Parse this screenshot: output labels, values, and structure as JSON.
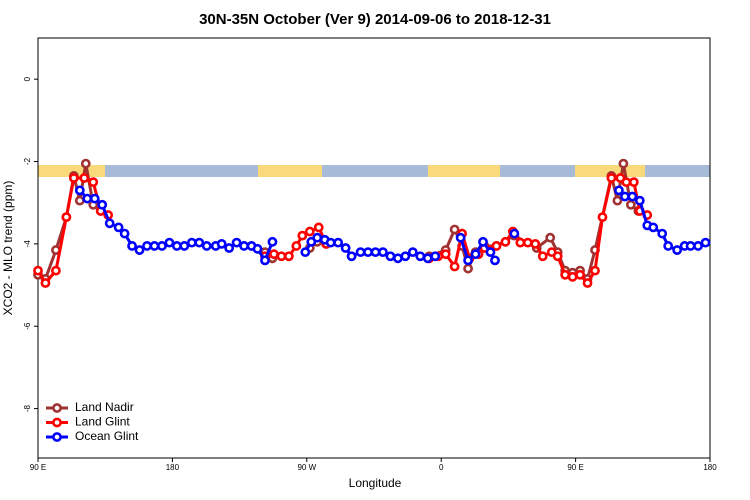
{
  "chart_data": {
    "type": "line",
    "title": "30N-35N October (Ver 9)   2014-09-06 to 2018-12-31",
    "x_label": "Longitude",
    "y_label": "XCO2 - MLO trend (ppm)",
    "xlim": [
      90,
      540
    ],
    "xticks": [
      {
        "value": 90,
        "label": "90 E"
      },
      180,
      {
        "value": 270,
        "label": "90 W"
      },
      {
        "value": 360,
        "label": "0"
      },
      {
        "value": 450,
        "label": "90 E"
      },
      {
        "value": 540,
        "label": "180"
      }
    ],
    "ylim": [
      -9.2,
      1
    ],
    "yticks": [
      0,
      -2,
      -4,
      -6,
      -8
    ],
    "legend": "bottom-left",
    "series": [
      {
        "name": "Land Nadir",
        "color": "#a03232",
        "x": [
          90,
          95,
          102,
          109,
          114,
          118,
          122,
          127,
          132,
          null,
          242,
          247,
          null,
          272,
          277,
          283,
          null,
          352,
          363,
          369,
          374,
          378,
          383,
          389,
          397,
          409,
          424,
          433,
          438,
          443,
          448,
          453,
          458,
          463,
          474,
          478,
          482,
          487,
          492
        ],
        "values": [
          -4.75,
          -4.85,
          -4.15,
          -3.35,
          -2.35,
          -2.95,
          -2.05,
          -3.05,
          -3.2,
          null,
          -4.2,
          -4.35,
          null,
          -4.1,
          -3.95,
          -4.0,
          null,
          -4.3,
          -4.15,
          -3.65,
          -4.05,
          -4.6,
          -4.2,
          -4.05,
          -4.05,
          -3.8,
          -4.1,
          -3.85,
          -4.2,
          -4.65,
          -4.7,
          -4.65,
          -4.85,
          -4.15,
          -2.35,
          -2.95,
          -2.05,
          -3.05,
          -3.2
        ]
      },
      {
        "name": "Land Glint",
        "color": "#ff0000",
        "x": [
          90,
          95,
          102,
          109,
          114,
          121,
          127,
          132,
          137,
          null,
          242,
          248,
          253,
          258,
          263,
          267,
          272,
          278,
          283,
          null,
          352,
          358,
          363,
          369,
          374,
          379,
          385,
          389,
          397,
          403,
          408,
          413,
          418,
          423,
          428,
          434,
          438,
          443,
          448,
          453,
          458,
          463,
          468,
          474,
          480,
          484,
          489,
          493,
          498
        ],
        "values": [
          -4.65,
          -4.95,
          -4.65,
          -3.35,
          -2.4,
          -2.4,
          -2.5,
          -3.2,
          -3.3,
          null,
          -4.3,
          -4.25,
          -4.3,
          -4.3,
          -4.05,
          -3.8,
          -3.7,
          -3.6,
          -4.0,
          null,
          -4.35,
          -4.3,
          -4.25,
          -4.55,
          -3.75,
          -4.35,
          -4.25,
          -4.1,
          -4.05,
          -3.95,
          -3.7,
          -3.97,
          -3.97,
          -4.0,
          -4.3,
          -4.2,
          -4.3,
          -4.75,
          -4.8,
          -4.75,
          -4.95,
          -4.65,
          -3.35,
          -2.4,
          -2.4,
          -2.5,
          -2.5,
          -3.2,
          -3.3
        ]
      },
      {
        "name": "Ocean Glint",
        "color": "#0000ff",
        "x": [
          118,
          123,
          128,
          133,
          138,
          144,
          148,
          153,
          158,
          163,
          168,
          173,
          178,
          183,
          188,
          193,
          198,
          203,
          209,
          213,
          218,
          223,
          228,
          233,
          237,
          242,
          247,
          null,
          269,
          273,
          277,
          282,
          286,
          291,
          296,
          300,
          306,
          311,
          316,
          321,
          326,
          331,
          336,
          341,
          346,
          351,
          356,
          null,
          373,
          378,
          383,
          388,
          393,
          396,
          null,
          409,
          null,
          479,
          483,
          488,
          493,
          498,
          502,
          508,
          512,
          518,
          523,
          527,
          532,
          537
        ],
        "values": [
          -2.7,
          -2.9,
          -2.9,
          -3.05,
          -3.5,
          -3.6,
          -3.75,
          -4.05,
          -4.15,
          -4.05,
          -4.05,
          -4.05,
          -3.97,
          -4.05,
          -4.05,
          -3.97,
          -3.97,
          -4.05,
          -4.05,
          -4.0,
          -4.1,
          -3.97,
          -4.05,
          -4.05,
          -4.12,
          -4.4,
          -3.95,
          null,
          -4.2,
          -3.95,
          -3.85,
          -3.9,
          -3.97,
          -3.97,
          -4.1,
          -4.3,
          -4.2,
          -4.2,
          -4.2,
          -4.2,
          -4.3,
          -4.35,
          -4.3,
          -4.2,
          -4.3,
          -4.35,
          -4.3,
          null,
          -3.85,
          -4.4,
          -4.25,
          -3.95,
          -4.2,
          -4.4,
          null,
          -3.75,
          null,
          -2.7,
          -2.85,
          -2.85,
          -2.95,
          -3.55,
          -3.6,
          -3.75,
          -4.05,
          -4.15,
          -4.05,
          -4.05,
          -4.05,
          -3.97
        ]
      }
    ]
  }
}
